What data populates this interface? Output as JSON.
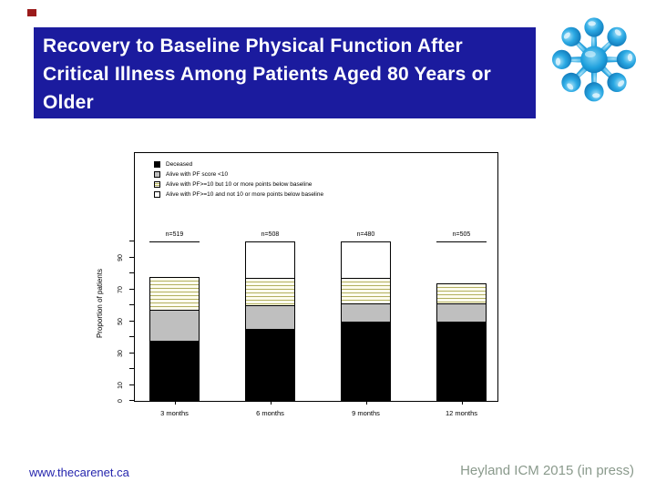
{
  "slide": {
    "title": "Recovery to Baseline Physical Function After Critical Illness Among Patients Aged 80 Years or Older",
    "footer_left": "www.thecarenet.ca",
    "footer_right": "Heyland  ICM 2015 (in press)",
    "colors": {
      "title_bg": "#1b1b9e",
      "title_text": "#ffffff",
      "accent_red": "#9b1b1b",
      "logo_blue": "#1ea7e0",
      "footer_left_color": "#2626ae",
      "footer_right_color": "#8a9a8c"
    },
    "icons": [
      "carenet-droplet-snowflake-logo"
    ]
  },
  "chart_data": {
    "type": "bar",
    "stacked": true,
    "title": "",
    "xlabel": "",
    "ylabel": "Proportion of patients",
    "ylim": [
      0,
      100
    ],
    "yticks_labeled": [
      0,
      10,
      30,
      50,
      70,
      90
    ],
    "yticks_minor": [
      20,
      40,
      60,
      80,
      100
    ],
    "grid": false,
    "legend_position": "top-left-inside",
    "categories": [
      "3 months",
      "6 months",
      "9 months",
      "12 months"
    ],
    "group_n_labels": [
      "n=519",
      "n=508",
      "n=480",
      "n=505"
    ],
    "series": [
      {
        "name": "Deceased",
        "color": "#000000",
        "pattern": "solid",
        "values": [
          38,
          45,
          50,
          50
        ]
      },
      {
        "name": "Alive with PF score <10",
        "color": "#bfbfbf",
        "pattern": "solid",
        "values": [
          19,
          15,
          11,
          11
        ]
      },
      {
        "name": "Alive with PF>=10 but 10 or more points below baseline",
        "color": "#b3b060",
        "pattern": "hatch-horizontal",
        "hatch_bg": "#fdfcee",
        "values": [
          21,
          17,
          16,
          13
        ]
      },
      {
        "name": "Alive with PF>=10 and not 10 or more points below baseline",
        "color": "#ffffff",
        "pattern": "solid",
        "values": [
          22,
          23,
          23,
          26
        ]
      }
    ],
    "open_top_groups": [
      true,
      false,
      false,
      true
    ]
  }
}
